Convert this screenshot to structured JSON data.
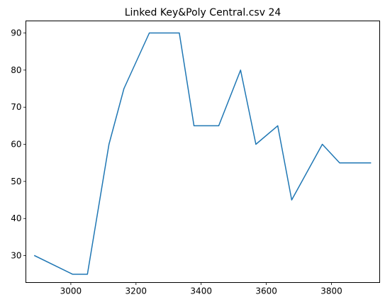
{
  "chart_data": {
    "type": "line",
    "title": "Linked Key&Poly Central.csv 24",
    "xlabel": "",
    "ylabel": "",
    "xlim": [
      2862,
      3948
    ],
    "ylim": [
      22.75,
      93.25
    ],
    "xticks": [
      3000,
      3200,
      3400,
      3600,
      3800
    ],
    "yticks": [
      30,
      40,
      50,
      60,
      70,
      80,
      90
    ],
    "grid": false,
    "line_color": "#1f77b4",
    "series": [
      {
        "x": [
          2889,
          3005,
          3051,
          3117,
          3163,
          3241,
          3333,
          3378,
          3454,
          3521,
          3568,
          3635,
          3678,
          3772,
          3825,
          3920
        ],
        "y": [
          30,
          25,
          25,
          60,
          75,
          90,
          90,
          65,
          65,
          80,
          60,
          65,
          45,
          60,
          55,
          55
        ]
      }
    ]
  }
}
